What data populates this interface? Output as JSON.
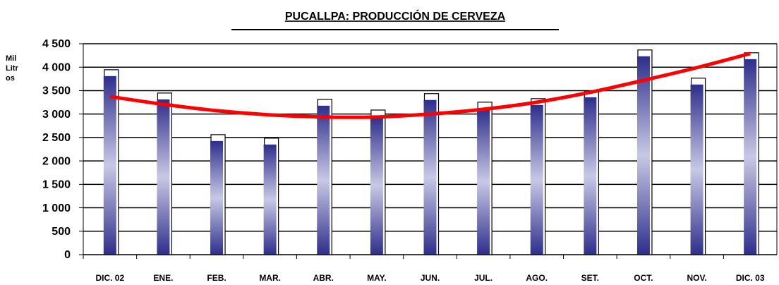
{
  "chart_data": {
    "type": "bar",
    "title": "PUCALLPA: PRODUCCIÓN DE CERVEZA",
    "y_label": "Mil Litros",
    "categories": [
      "DIC. 02",
      "ENE.",
      "FEB.",
      "MAR.",
      "ABR.",
      "MAY.",
      "JUN.",
      "JUL.",
      "AGO.",
      "SET.",
      "OCT.",
      "NOV.",
      "DIC. 03"
    ],
    "values": [
      3810,
      3313,
      2425,
      2350,
      3178,
      2950,
      3300,
      3118,
      3193,
      3358,
      4232,
      3630,
      4172
    ],
    "color": "#2e2e8c",
    "trend": [
      3373,
      3208,
      3072,
      2982,
      2937,
      2937,
      3000,
      3102,
      3253,
      3464,
      3720,
      3990,
      4292
    ],
    "trend_color": "#ff0000",
    "ylim": [
      0,
      4500
    ],
    "yticks": [
      0,
      500,
      {
        "value": 1000,
        "label": "1 000"
      },
      {
        "value": 1500,
        "label": "1 500"
      },
      {
        "value": 2000,
        "label": "2 000"
      },
      {
        "value": 2500,
        "label": "2 500"
      },
      {
        "value": 3000,
        "label": "3 000"
      },
      {
        "value": 3500,
        "label": "3 500"
      },
      {
        "value": 4000,
        "label": "4 000"
      },
      {
        "value": 4500,
        "label": "4 500"
      }
    ],
    "grid": true
  }
}
